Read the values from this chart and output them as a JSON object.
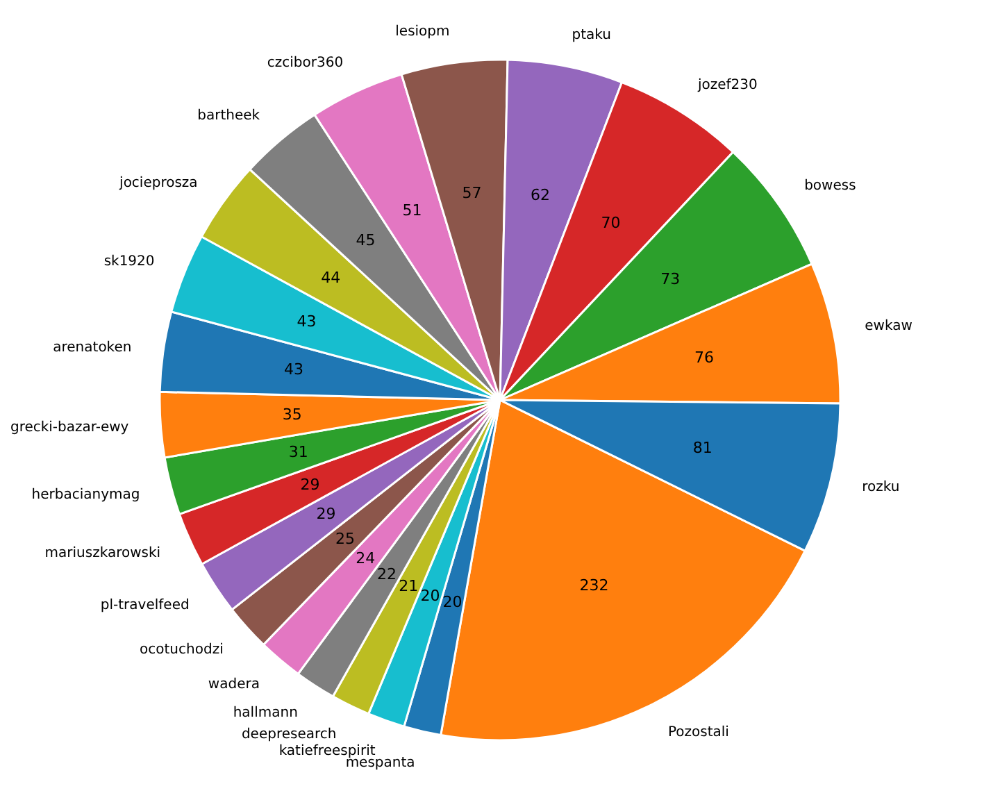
{
  "chart_data": {
    "type": "pie",
    "categories": [
      "rozku",
      "ewkaw",
      "bowess",
      "jozef230",
      "ptaku",
      "lesiopm",
      "czcibor360",
      "bartheek",
      "jocieprosza",
      "sk1920",
      "arenatoken",
      "grecki-bazar-ewy",
      "herbacianymag",
      "mariuszkarowski",
      "pl-travelfeed",
      "ocotuchodzi",
      "wadera",
      "hallmann",
      "deepresearch",
      "katiefreespirit",
      "mespanta",
      "Pozostali"
    ],
    "values": [
      81,
      76,
      73,
      70,
      62,
      57,
      51,
      45,
      44,
      43,
      43,
      35,
      31,
      29,
      29,
      25,
      24,
      22,
      21,
      20,
      20,
      232
    ],
    "colors": [
      "#1f77b4",
      "#ff7f0e",
      "#2ca02c",
      "#d62728",
      "#9467bd",
      "#8c564b",
      "#e377c2",
      "#7f7f7f",
      "#bcbd22",
      "#17becf",
      "#1f77b4",
      "#ff7f0e",
      "#2ca02c",
      "#d62728",
      "#9467bd",
      "#8c564b",
      "#e377c2",
      "#7f7f7f",
      "#bcbd22",
      "#17becf",
      "#1f77b4",
      "#ff7f0e"
    ],
    "data_labels": true
  }
}
